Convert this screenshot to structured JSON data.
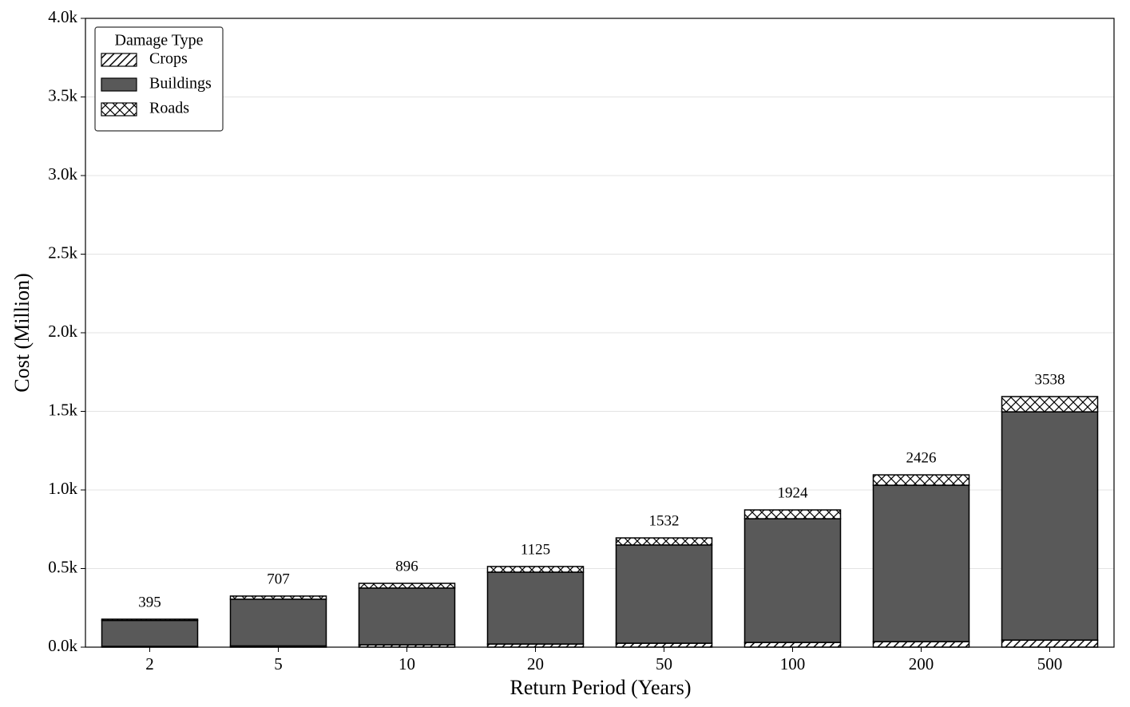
{
  "chart_data": {
    "type": "stacked_bar",
    "x_label": "Return Period (Years)",
    "y_label": "Cost (Million)",
    "categories": [
      "2",
      "5",
      "10",
      "20",
      "50",
      "100",
      "200",
      "500"
    ],
    "series": [
      {
        "name": "Crops",
        "color": "#ffffff",
        "hatch": "/",
        "values": [
          5,
          8,
          15,
          20,
          25,
          30,
          35,
          45
        ]
      },
      {
        "name": "Buildings",
        "color": "#595959",
        "values": [
          165,
          297,
          361,
          457,
          625,
          787,
          995,
          1452
        ]
      },
      {
        "name": "Roads",
        "color": "#ffffff",
        "hatch": "x",
        "values": [
          8,
          20,
          30,
          36,
          45,
          56,
          66,
          97
        ]
      }
    ],
    "annotations": [
      395,
      707,
      896,
      1125,
      1532,
      1924,
      2426,
      3538
    ],
    "legend_title": "Damage Type",
    "legend": "upper left",
    "ylim": [
      0,
      4000
    ],
    "yticks": [
      {
        "value": 0,
        "label": "0.0k"
      },
      {
        "value": 500,
        "label": "0.5k"
      },
      {
        "value": 1000,
        "label": "1.0k"
      },
      {
        "value": 1500,
        "label": "1.5k"
      },
      {
        "value": 2000,
        "label": "2.0k"
      },
      {
        "value": 2500,
        "label": "2.5k"
      },
      {
        "value": 3000,
        "label": "3.0k"
      },
      {
        "value": 3500,
        "label": "3.5k"
      },
      {
        "value": 4000,
        "label": "4.0k"
      }
    ],
    "grid": true
  }
}
